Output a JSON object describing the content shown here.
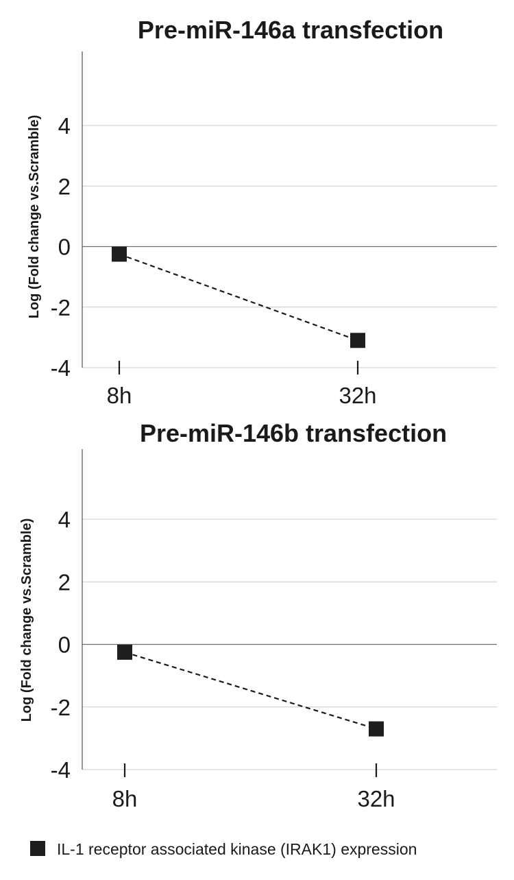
{
  "chart_data": [
    {
      "type": "line",
      "title": "Pre-miR-146a transfection",
      "xlabel": "",
      "ylabel": "Log (Fold change vs.Scramble)",
      "categories": [
        "8h",
        "32h"
      ],
      "series": [
        {
          "name": "IL-1 receptor associated kinase (IRAK1) expression",
          "values": [
            -0.25,
            -3.1
          ]
        }
      ],
      "ylim": [
        -4,
        6
      ],
      "yticks": [
        "4",
        "2",
        "0",
        "-2",
        "-4"
      ],
      "grid": true,
      "line_style": "dashed",
      "marker": "square"
    },
    {
      "type": "line",
      "title": "Pre-miR-146b transfection",
      "xlabel": "",
      "ylabel": "Log (Fold change vs.Scramble)",
      "categories": [
        "8h",
        "32h"
      ],
      "series": [
        {
          "name": "IL-1 receptor associated kinase (IRAK1) expression",
          "values": [
            -0.25,
            -2.7
          ]
        }
      ],
      "ylim": [
        -4,
        6
      ],
      "yticks": [
        "4",
        "2",
        "0",
        "-2",
        "-4"
      ],
      "grid": true,
      "line_style": "dashed",
      "marker": "square"
    }
  ],
  "legend": {
    "label": "IL-1 receptor associated kinase (IRAK1) expression",
    "position": "bottom-left"
  },
  "colors": {
    "marker": "#1e1e1e",
    "grid": "#c8c8c8",
    "zero_line": "#6e6e6e",
    "axis": "#5a5a5a"
  }
}
